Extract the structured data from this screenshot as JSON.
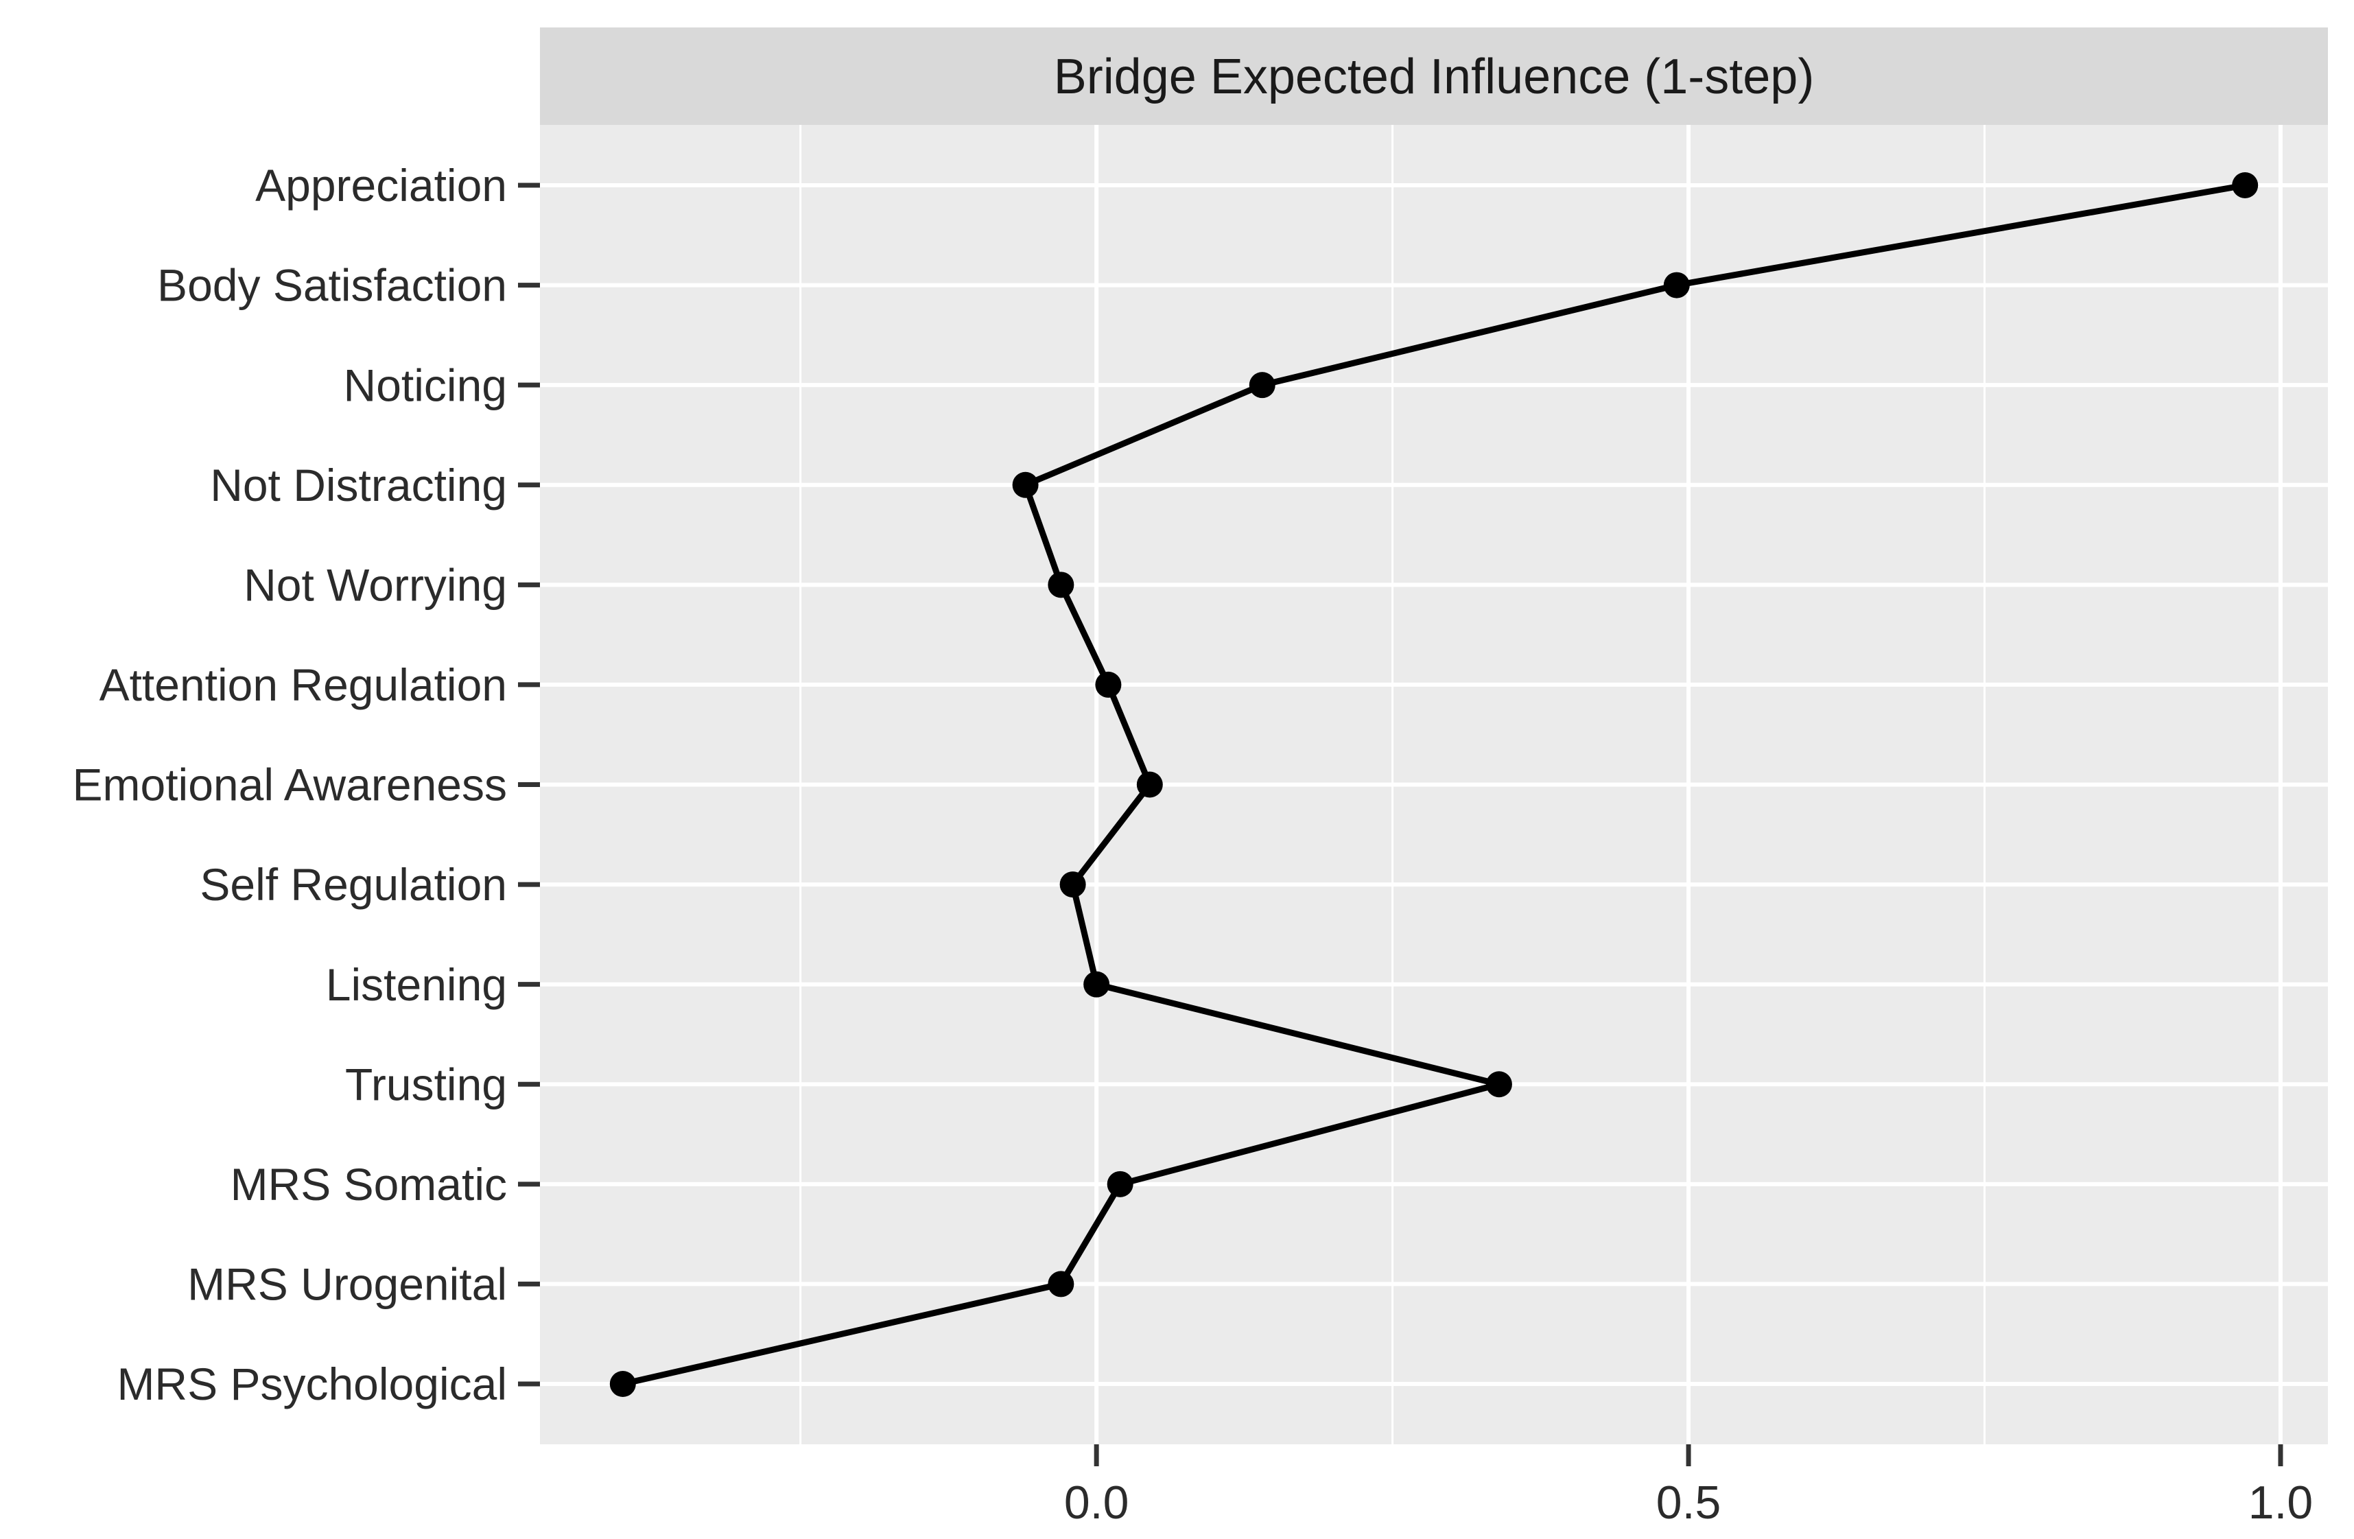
{
  "chart_data": {
    "type": "line",
    "orientation": "horizontal-categorical",
    "title": "Bridge Expected Influence (1-step)",
    "xlabel": "",
    "ylabel": "",
    "categories": [
      "Appreciation",
      "Body Satisfaction",
      "Noticing",
      "Not Distracting",
      "Not Worrying",
      "Attention Regulation",
      "Emotional Awareness",
      "Self Regulation",
      "Listening",
      "Trusting",
      "MRS Somatic",
      "MRS Urogenital",
      "MRS Psychological"
    ],
    "values": [
      0.97,
      0.49,
      0.14,
      -0.06,
      -0.03,
      0.01,
      0.045,
      -0.02,
      0.0,
      0.34,
      0.02,
      -0.03,
      -0.4
    ],
    "x_ticks": [
      0.0,
      0.5,
      1.0
    ],
    "x_tick_labels": [
      "0.0",
      "0.5",
      "1.0"
    ],
    "x_minor_ticks": [
      -0.25,
      0.25,
      0.75
    ],
    "xlim": [
      -0.47,
      1.04
    ],
    "grid": true,
    "legend": false,
    "style": "ggplot2",
    "colors": {
      "page_background": "#ffffff",
      "panel_background": "#ebebeb",
      "strip_background": "#d9d9d9",
      "gridline": "#ffffff",
      "line": "#000000",
      "point": "#000000",
      "tick_mark": "#333333",
      "axis_text": "#2b2b2b",
      "title_text": "#1a1a1a"
    }
  }
}
